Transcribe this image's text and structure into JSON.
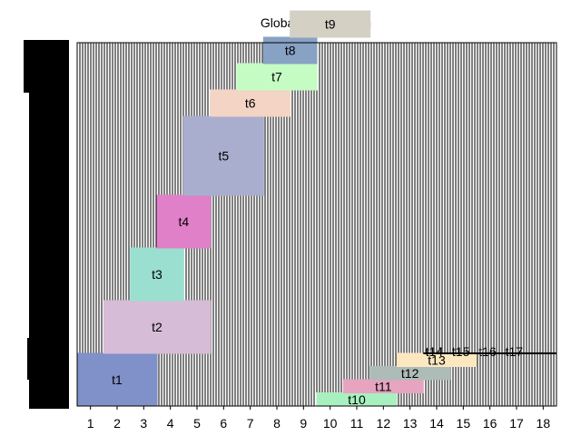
{
  "chart_data": {
    "type": "gantt",
    "title": "Global Optimization",
    "xlabel": "",
    "ylabel": "",
    "xlim": [
      0.5,
      18.5
    ],
    "xticks": [
      "1",
      "2",
      "3",
      "4",
      "5",
      "6",
      "7",
      "8",
      "9",
      "10",
      "11",
      "12",
      "13",
      "14",
      "15",
      "16",
      "17",
      "18"
    ],
    "ylim": [
      0,
      14
    ],
    "grid": "vertical dense lines",
    "legend": "none",
    "tasks": [
      {
        "name": "t1",
        "start": 0.5,
        "end": 3.5,
        "y0": 0,
        "y1": 2,
        "color": "#8090c8"
      },
      {
        "name": "t2",
        "start": 1.5,
        "end": 5.5,
        "y0": 2,
        "y1": 4,
        "color": "#d6bcd6"
      },
      {
        "name": "t3",
        "start": 2.5,
        "end": 4.5,
        "y0": 4,
        "y1": 6,
        "color": "#9adfcf"
      },
      {
        "name": "t4",
        "start": 3.5,
        "end": 5.5,
        "y0": 6,
        "y1": 8,
        "color": "#e080c8"
      },
      {
        "name": "t5",
        "start": 4.5,
        "end": 7.5,
        "y0": 8,
        "y1": 11,
        "color": "#a9aece"
      },
      {
        "name": "t6",
        "start": 5.5,
        "end": 8.5,
        "y0": 11,
        "y1": 12,
        "color": "#f4d4c4"
      },
      {
        "name": "t7",
        "start": 6.5,
        "end": 9.5,
        "y0": 12,
        "y1": 13,
        "color": "#c4fcc4"
      },
      {
        "name": "t8",
        "start": 7.5,
        "end": 9.5,
        "y0": 13,
        "y1": 14,
        "color": "#88a2c4"
      },
      {
        "name": "t9",
        "start": 8.5,
        "end": 11.5,
        "y0": 14,
        "y1": 15,
        "color": "#d4d0c4"
      },
      {
        "name": "t10",
        "start": 9.5,
        "end": 12.5,
        "y0": 0,
        "y1": 0.5,
        "color": "#a8f0c0"
      },
      {
        "name": "t11",
        "start": 10.5,
        "end": 13.5,
        "y0": 0.5,
        "y1": 1,
        "color": "#e6a4c0"
      },
      {
        "name": "t12",
        "start": 11.5,
        "end": 14.5,
        "y0": 1,
        "y1": 1.5,
        "color": "#aebcb8"
      },
      {
        "name": "t13",
        "start": 12.5,
        "end": 15.5,
        "y0": 1.5,
        "y1": 2,
        "color": "#fce8c0"
      },
      {
        "name": "t14",
        "start": 13.5,
        "end": 18.5,
        "y0": 2,
        "y1": 2.0,
        "color": "#000000"
      },
      {
        "name": "t15",
        "start": 14.5,
        "end": 18.5,
        "y0": 2,
        "y1": 2.0,
        "color": "#000000"
      },
      {
        "name": "t16",
        "start": 15.5,
        "end": 18.5,
        "y0": 2,
        "y1": 2.0,
        "color": "#000000"
      },
      {
        "name": "t17",
        "start": 16.5,
        "end": 18.5,
        "y0": 2,
        "y1": 2.0,
        "color": "#000000"
      }
    ]
  }
}
